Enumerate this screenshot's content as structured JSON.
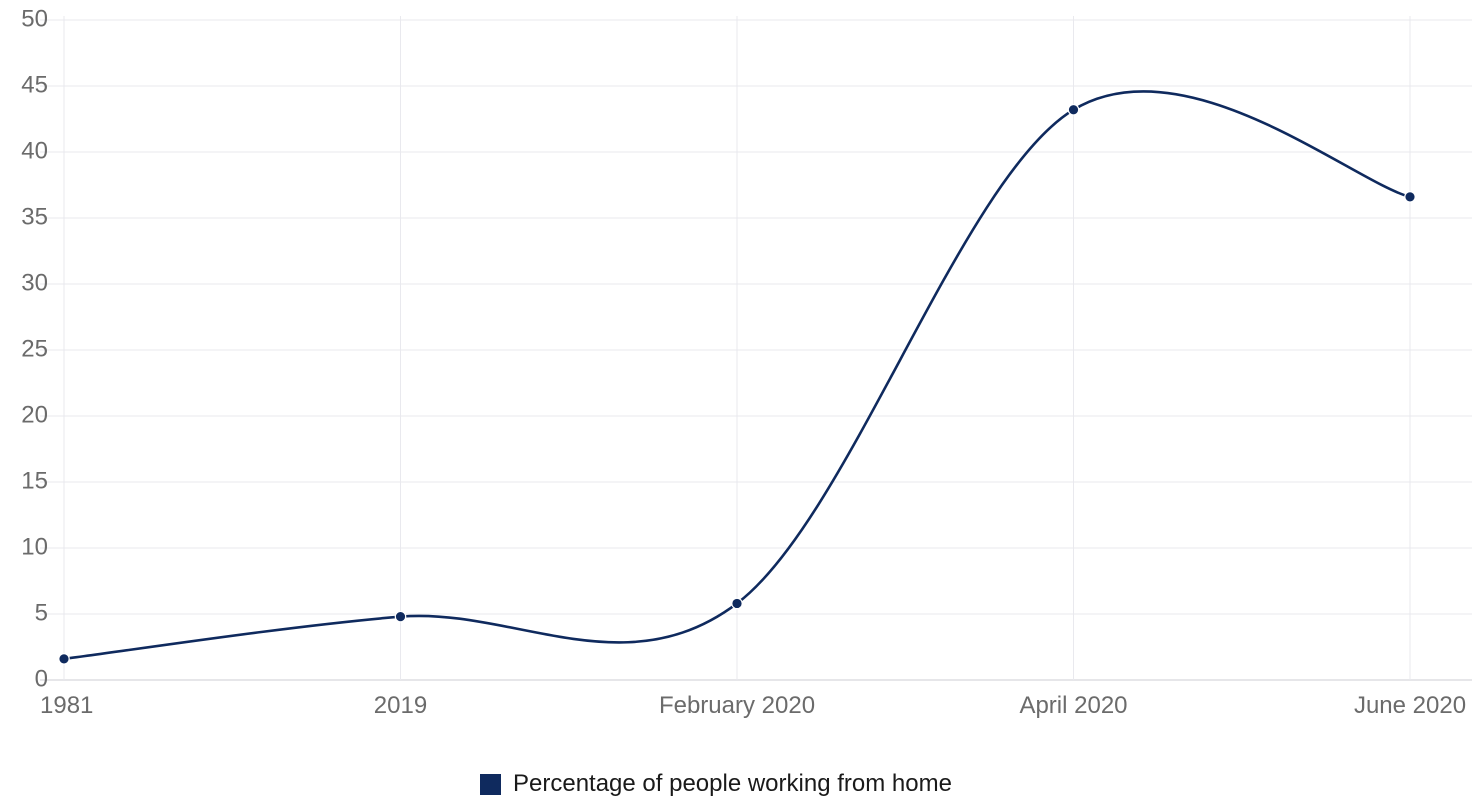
{
  "chart_data": {
    "type": "line",
    "categories": [
      "1981",
      "2019",
      "February 2020",
      "April 2020",
      "June 2020"
    ],
    "series": [
      {
        "name": "Percentage of people working from home",
        "values": [
          1.6,
          4.8,
          5.8,
          43.2,
          36.6
        ],
        "color": "#0f2a5e"
      }
    ],
    "ylim": [
      0,
      50
    ],
    "yticks": [
      "0",
      "5",
      "10",
      "15",
      "20",
      "25",
      "30",
      "35",
      "40",
      "45",
      "50"
    ],
    "grid": true,
    "smooth": true,
    "legend_position": "bottom-center"
  },
  "colors": {
    "series": "#0f2a5e",
    "grid": "#e9e9ee",
    "tick_text": "#6b6b6b"
  }
}
